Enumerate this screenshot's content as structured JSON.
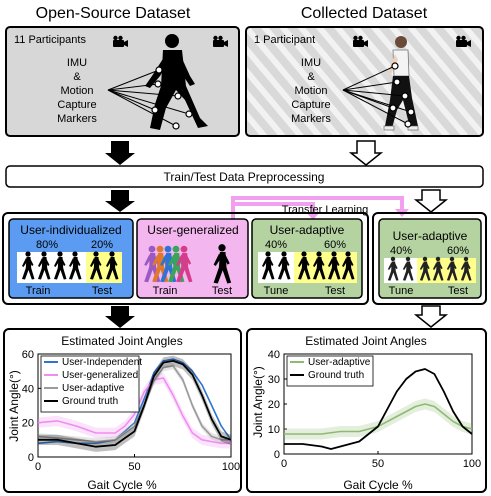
{
  "header": {
    "left_title": "Open-Source Dataset",
    "right_title": "Collected Dataset"
  },
  "open_source": {
    "participants": "11 Participants",
    "sensor_lines": [
      "IMU",
      "&",
      "Motion",
      "Capture",
      "Markers"
    ]
  },
  "collected": {
    "participants": "1 Participant",
    "sensor_lines": [
      "IMU",
      "&",
      "Motion",
      "Capture",
      "Markers"
    ]
  },
  "preprocessing": {
    "label": "Train/Test Data Preprocessing"
  },
  "transfer": {
    "label": "Transfer Learning"
  },
  "models": {
    "individualized": {
      "title": "User-individualized",
      "pct_left": "80%",
      "pct_right": "20%",
      "label_left": "Train",
      "label_right": "Test",
      "color": "#5b9cf2"
    },
    "generalized": {
      "title": "User-generalized",
      "label_left": "Train",
      "label_right": "Test",
      "color": "#f4b6ee"
    },
    "adaptive_open": {
      "title": "User-adaptive",
      "pct_left": "40%",
      "pct_right": "60%",
      "label_left": "Tune",
      "label_right": "Test",
      "color": "#b5d2a1"
    },
    "adaptive_collected": {
      "title": "User-adaptive",
      "pct_left": "40%",
      "pct_right": "60%",
      "label_left": "Tune",
      "label_right": "Test",
      "color": "#b5d2a1"
    }
  },
  "colors": {
    "panel_gray": "#d7d7d7",
    "highlight_yellow": "#ffff8c",
    "transfer_pink": "#f29ff0",
    "line_blue": "#2f74d0",
    "line_pink": "#f08ef0",
    "line_green": "#8fba74",
    "line_gray": "#9a9a9a"
  },
  "chart_data": [
    {
      "type": "line",
      "title": "Estimated Joint Angles",
      "xlabel": "Gait Cycle %",
      "ylabel": "Joint Angle(°)",
      "xlim": [
        0,
        100
      ],
      "ylim": [
        0,
        60
      ],
      "xticks": [
        "0",
        "50",
        "100"
      ],
      "yticks": [
        "0",
        "20",
        "40",
        "60"
      ],
      "legend_position": "top-left",
      "series": [
        {
          "name": "User-Independent",
          "color": "#2f74d0",
          "x": [
            0,
            10,
            20,
            30,
            40,
            50,
            55,
            60,
            65,
            70,
            75,
            80,
            85,
            90,
            95,
            100
          ],
          "y": [
            8,
            9,
            8,
            8,
            10,
            20,
            34,
            49,
            56,
            57,
            55,
            50,
            42,
            30,
            18,
            10
          ]
        },
        {
          "name": "User-generalized",
          "color": "#f08ef0",
          "x": [
            0,
            10,
            20,
            30,
            40,
            45,
            50,
            55,
            60,
            65,
            70,
            75,
            80,
            85,
            90,
            95,
            100
          ],
          "y": [
            20,
            21,
            18,
            14,
            14,
            18,
            25,
            38,
            45,
            46,
            36,
            24,
            14,
            10,
            9,
            8,
            8
          ]
        },
        {
          "name": "User-adaptive",
          "color": "#9a9a9a",
          "x": [
            0,
            10,
            20,
            30,
            40,
            50,
            55,
            60,
            65,
            70,
            75,
            80,
            85,
            90,
            95,
            100
          ],
          "y": [
            12,
            11,
            10,
            9,
            10,
            18,
            30,
            44,
            52,
            53,
            45,
            30,
            18,
            12,
            10,
            10
          ]
        },
        {
          "name": "Ground truth",
          "color": "#000000",
          "x": [
            0,
            10,
            20,
            30,
            40,
            50,
            55,
            60,
            65,
            70,
            75,
            80,
            85,
            90,
            95,
            100
          ],
          "y": [
            10,
            10,
            8,
            6,
            7,
            15,
            30,
            47,
            55,
            56,
            54,
            48,
            36,
            22,
            12,
            10
          ]
        }
      ]
    },
    {
      "type": "line",
      "title": "Estimated Joint Angles",
      "xlabel": "Gait Cycle %",
      "ylabel": "Joint Angle(°)",
      "xlim": [
        0,
        100
      ],
      "ylim": [
        0,
        40
      ],
      "xticks": [
        "0",
        "50",
        "100"
      ],
      "yticks": [
        "0",
        "10",
        "20",
        "30",
        "40"
      ],
      "legend_position": "top-left",
      "series": [
        {
          "name": "User-adaptive",
          "color": "#8fba74",
          "x": [
            0,
            10,
            20,
            30,
            40,
            50,
            60,
            65,
            70,
            75,
            80,
            85,
            90,
            95,
            100
          ],
          "y": [
            8,
            8,
            8,
            9,
            9,
            11,
            15,
            17,
            19,
            20,
            19,
            16,
            13,
            11,
            10
          ]
        },
        {
          "name": "Ground truth",
          "color": "#000000",
          "x": [
            0,
            10,
            20,
            25,
            30,
            40,
            50,
            55,
            60,
            65,
            70,
            75,
            80,
            85,
            90,
            95,
            100
          ],
          "y": [
            4,
            4,
            3,
            2,
            3,
            5,
            11,
            18,
            25,
            30,
            33,
            34,
            32,
            25,
            17,
            11,
            8
          ]
        }
      ]
    }
  ]
}
